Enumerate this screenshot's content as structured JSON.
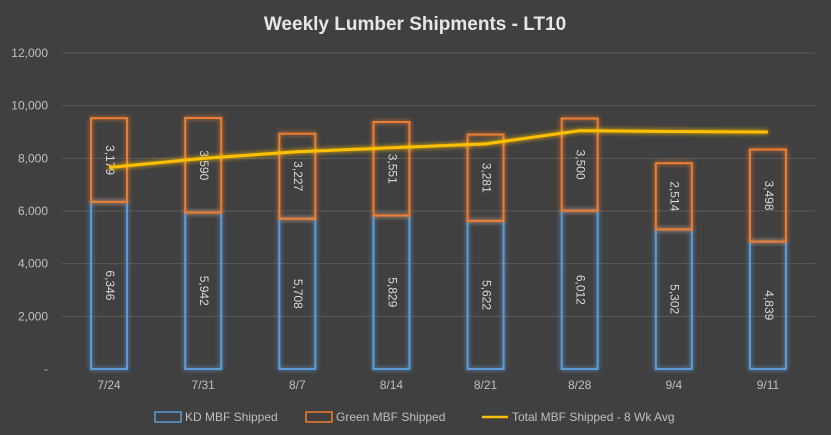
{
  "chart_data": {
    "type": "bar",
    "stacked": true,
    "title": "Weekly Lumber Shipments - LT10",
    "categories": [
      "7/24",
      "7/31",
      "8/7",
      "8/14",
      "8/21",
      "8/28",
      "9/4",
      "9/11"
    ],
    "ylim": [
      0,
      12000
    ],
    "yticks": [
      "-",
      "2,000",
      "4,000",
      "6,000",
      "8,000",
      "10,000",
      "12,000"
    ],
    "ytick_values": [
      0,
      2000,
      4000,
      6000,
      8000,
      10000,
      12000
    ],
    "grid": true,
    "legend_position": "bottom",
    "series": [
      {
        "name": "KD MBF Shipped",
        "type": "bar",
        "color": "#5b9bd5",
        "values": [
          6346,
          5942,
          5708,
          5829,
          5622,
          6012,
          5302,
          4839
        ],
        "labels": [
          "6,346",
          "5,942",
          "5,708",
          "5,829",
          "5,622",
          "6,012",
          "5,302",
          "4,839"
        ]
      },
      {
        "name": "Green MBF Shipped",
        "type": "bar",
        "color": "#ed7d31",
        "values": [
          3179,
          3590,
          3227,
          3551,
          3281,
          3500,
          2514,
          3498
        ],
        "labels": [
          "3,179",
          "3,590",
          "3,227",
          "3,551",
          "3,281",
          "3,500",
          "2,514",
          "3,498"
        ]
      },
      {
        "name": "Total MBF Shipped - 8 Wk Avg",
        "type": "line",
        "color": "#ffc000",
        "values": [
          7650,
          8000,
          8250,
          8400,
          8550,
          9050,
          9020,
          9000
        ]
      }
    ]
  }
}
